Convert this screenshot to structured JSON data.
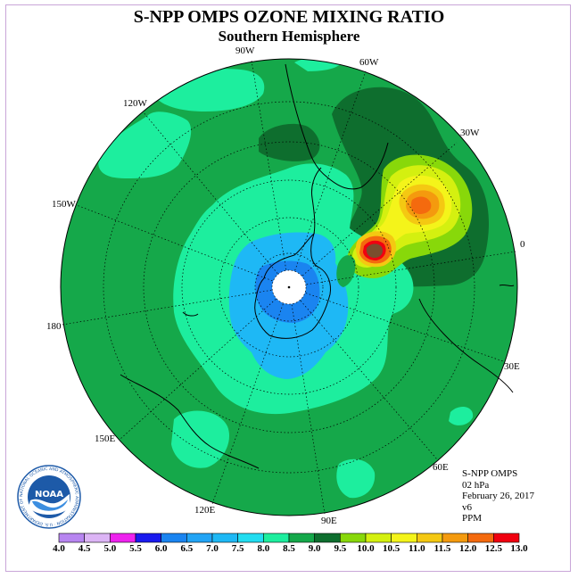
{
  "title": "S-NPP OMPS OZONE MIXING RATIO",
  "subtitle": "Southern Hemisphere",
  "longitude_labels": [
    "90W",
    "60W",
    "30W",
    "0",
    "30E",
    "60E",
    "90E",
    "120E",
    "150E",
    "180",
    "150W",
    "120W"
  ],
  "info": {
    "instrument": "S-NPP OMPS",
    "level": "02 hPa",
    "date": "February 26, 2017",
    "version": "v6",
    "unit": "PPM"
  },
  "colorbar": {
    "ticks": [
      "4.0",
      "4.5",
      "5.0",
      "5.5",
      "6.0",
      "6.5",
      "7.0",
      "7.5",
      "8.0",
      "8.5",
      "9.0",
      "9.5",
      "10.0",
      "10.5",
      "11.0",
      "11.5",
      "12.0",
      "12.5",
      "13.0"
    ],
    "colors": [
      "#b785f0",
      "#dcb4f5",
      "#ee22ee",
      "#1a1aee",
      "#1a84f0",
      "#22a4f5",
      "#1eb8f5",
      "#22ddf0",
      "#1dee9e",
      "#15a84a",
      "#0e6e2e",
      "#88d80a",
      "#d4f010",
      "#f4f41a",
      "#f4c812",
      "#f49a0e",
      "#f46a0e",
      "#f00010",
      "#7a4e2e"
    ]
  },
  "logo": {
    "text": "NOAA",
    "ring_text": "NATIONAL OCEANIC AND ATMOSPHERIC ADMINISTRATION · U.S. DEPARTMENT OF COMMERCE"
  }
}
